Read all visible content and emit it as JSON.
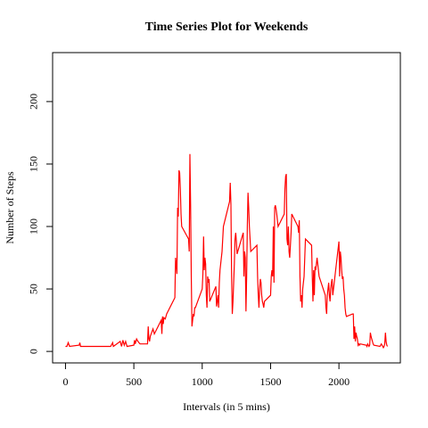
{
  "chart_data": {
    "type": "line",
    "title": "Time Series Plot for Weekends",
    "x_label": "Intervals (in 5 mins)",
    "y_label": "Number of Steps",
    "color": "#ff0000",
    "xlim": [
      -94.2,
      2449.2
    ],
    "xticks": [
      0,
      500,
      1000,
      1500,
      2000
    ],
    "ylim": [
      -9.2,
      239.2
    ],
    "yticks": [
      0,
      50,
      100,
      150,
      200
    ],
    "x": [
      0,
      10,
      20,
      30,
      100,
      105,
      110,
      300,
      330,
      345,
      350,
      400,
      410,
      420,
      430,
      440,
      450,
      500,
      505,
      510,
      520,
      530,
      545,
      600,
      605,
      610,
      615,
      620,
      630,
      640,
      650,
      700,
      705,
      710,
      715,
      720,
      730,
      740,
      800,
      805,
      810,
      815,
      820,
      825,
      830,
      835,
      840,
      845,
      850,
      900,
      905,
      910,
      915,
      920,
      925,
      930,
      935,
      940,
      945,
      950,
      1000,
      1005,
      1010,
      1015,
      1020,
      1025,
      1030,
      1035,
      1040,
      1045,
      1050,
      1055,
      1100,
      1105,
      1110,
      1115,
      1120,
      1125,
      1130,
      1135,
      1140,
      1145,
      1150,
      1155,
      1200,
      1205,
      1210,
      1215,
      1220,
      1225,
      1230,
      1235,
      1240,
      1245,
      1250,
      1255,
      1300,
      1305,
      1310,
      1315,
      1320,
      1325,
      1330,
      1335,
      1340,
      1345,
      1350,
      1355,
      1400,
      1405,
      1410,
      1415,
      1420,
      1425,
      1430,
      1435,
      1440,
      1445,
      1450,
      1455,
      1500,
      1505,
      1510,
      1515,
      1520,
      1525,
      1530,
      1535,
      1540,
      1545,
      1550,
      1555,
      1600,
      1605,
      1610,
      1615,
      1620,
      1625,
      1630,
      1635,
      1640,
      1645,
      1650,
      1655,
      1700,
      1705,
      1710,
      1715,
      1720,
      1725,
      1730,
      1735,
      1740,
      1745,
      1750,
      1755,
      1800,
      1805,
      1810,
      1815,
      1820,
      1825,
      1830,
      1835,
      1840,
      1845,
      1850,
      1855,
      1900,
      1905,
      1910,
      1915,
      1920,
      1925,
      1930,
      1935,
      1940,
      1945,
      1950,
      1955,
      2000,
      2005,
      2010,
      2015,
      2020,
      2025,
      2030,
      2035,
      2040,
      2045,
      2050,
      2055,
      2100,
      2105,
      2110,
      2115,
      2120,
      2125,
      2130,
      2135,
      2140,
      2145,
      2150,
      2155,
      2200,
      2205,
      2210,
      2215,
      2220,
      2225,
      2230,
      2235,
      2240,
      2245,
      2250,
      2255,
      2300,
      2305,
      2310,
      2315,
      2320,
      2325,
      2330,
      2335,
      2340,
      2345,
      2350,
      2355
    ],
    "values": [
      4,
      4,
      7,
      4,
      5,
      7,
      4,
      4,
      4,
      7,
      4,
      8,
      4,
      9,
      5,
      8,
      4,
      5,
      9,
      6,
      10,
      8,
      6,
      6,
      20,
      10,
      8,
      12,
      15,
      18,
      14,
      25,
      14,
      28,
      22,
      27,
      26,
      30,
      43,
      75,
      70,
      62,
      115,
      108,
      145,
      143,
      130,
      110,
      100,
      90,
      80,
      158,
      118,
      60,
      20,
      25,
      30,
      28,
      35,
      35,
      50,
      62,
      92,
      65,
      75,
      70,
      45,
      35,
      60,
      55,
      58,
      40,
      52,
      36,
      40,
      45,
      35,
      55,
      65,
      70,
      75,
      80,
      90,
      100,
      120,
      135,
      118,
      60,
      30,
      40,
      55,
      70,
      90,
      95,
      88,
      78,
      95,
      60,
      80,
      75,
      32,
      60,
      100,
      127,
      115,
      100,
      90,
      80,
      85,
      60,
      45,
      35,
      50,
      58,
      55,
      45,
      40,
      38,
      35,
      40,
      45,
      60,
      65,
      60,
      100,
      55,
      115,
      117,
      114,
      110,
      105,
      100,
      110,
      130,
      140,
      142,
      90,
      85,
      100,
      80,
      75,
      85,
      95,
      110,
      100,
      95,
      105,
      60,
      40,
      45,
      35,
      50,
      55,
      60,
      75,
      90,
      85,
      60,
      40,
      65,
      45,
      68,
      65,
      70,
      75,
      70,
      65,
      60,
      45,
      35,
      30,
      45,
      50,
      55,
      45,
      40,
      50,
      55,
      58,
      45,
      88,
      60,
      80,
      75,
      65,
      58,
      60,
      50,
      45,
      35,
      30,
      28,
      30,
      30,
      10,
      20,
      8,
      15,
      12,
      10,
      5,
      6,
      5,
      6,
      5,
      4,
      6,
      5,
      4,
      5,
      15,
      12,
      10,
      8,
      6,
      5,
      4,
      5,
      6,
      5,
      4,
      3,
      4,
      6,
      15,
      8,
      5,
      4
    ]
  }
}
